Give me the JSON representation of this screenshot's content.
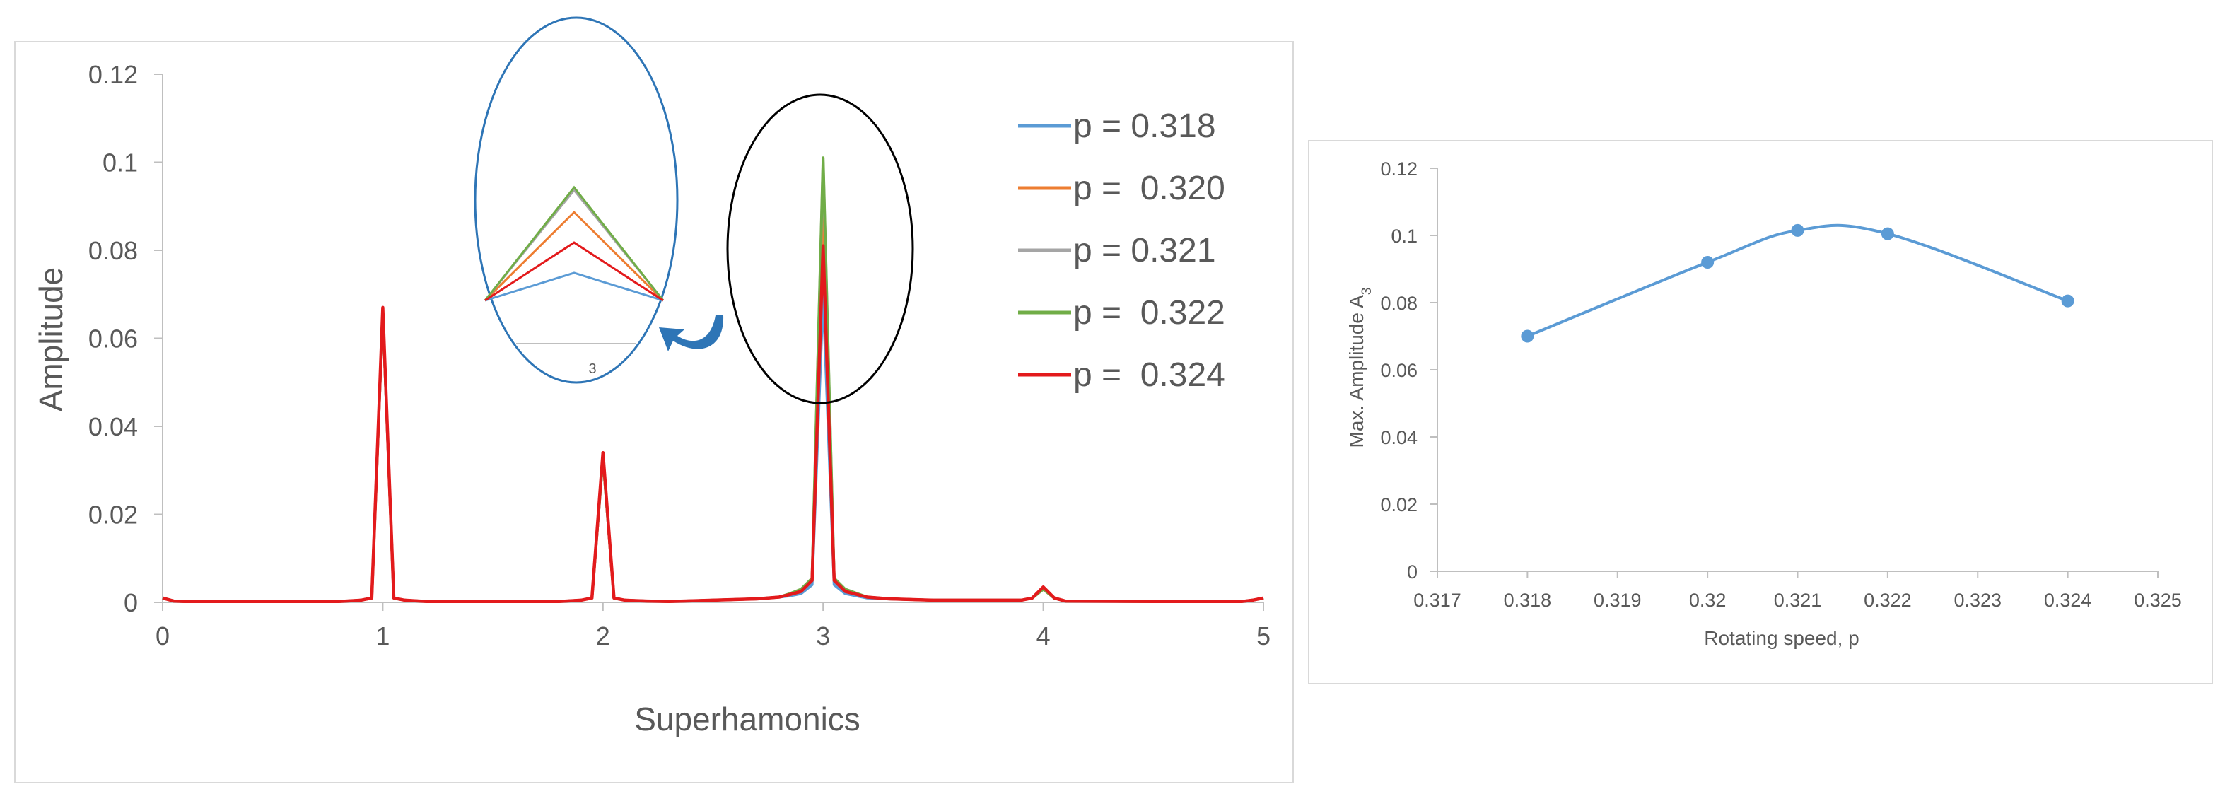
{
  "chart_data": [
    {
      "type": "line",
      "title": "",
      "xlabel": "Superhamonics",
      "ylabel": "Amplitude",
      "xlim": [
        0,
        5
      ],
      "ylim": [
        0,
        0.12
      ],
      "x_ticks": [
        "0",
        "1",
        "2",
        "3",
        "4",
        "5"
      ],
      "y_ticks": [
        "0",
        "0.02",
        "0.04",
        "0.06",
        "0.08",
        "0.1",
        "0.12"
      ],
      "grid": false,
      "legend_position": "right",
      "x": [
        0,
        0.05,
        0.1,
        0.2,
        0.5,
        0.8,
        0.9,
        0.95,
        1.0,
        1.05,
        1.1,
        1.2,
        1.5,
        1.8,
        1.9,
        1.95,
        2.0,
        2.05,
        2.1,
        2.2,
        2.3,
        2.5,
        2.7,
        2.8,
        2.85,
        2.9,
        2.95,
        3.0,
        3.05,
        3.1,
        3.2,
        3.3,
        3.5,
        3.8,
        3.9,
        3.95,
        4.0,
        4.05,
        4.1,
        4.5,
        4.9,
        4.95,
        5.0
      ],
      "series": [
        {
          "name": "p = 0.318",
          "color": "#5b9bd5",
          "values": [
            0.001,
            0.0003,
            0.0002,
            0.0002,
            0.0002,
            0.0002,
            0.0005,
            0.001,
            0.066,
            0.001,
            0.0005,
            0.0002,
            0.0002,
            0.0002,
            0.0005,
            0.001,
            0.033,
            0.001,
            0.0005,
            0.0003,
            0.0002,
            0.0005,
            0.0008,
            0.0012,
            0.0015,
            0.002,
            0.004,
            0.07,
            0.004,
            0.002,
            0.001,
            0.0008,
            0.0005,
            0.0005,
            0.0005,
            0.001,
            0.003,
            0.001,
            0.0003,
            0.0002,
            0.0002,
            0.0005,
            0.001
          ]
        },
        {
          "name": "p =  0.320",
          "color": "#ed7d31",
          "values": [
            0.001,
            0.0003,
            0.0002,
            0.0002,
            0.0002,
            0.0002,
            0.0005,
            0.001,
            0.066,
            0.001,
            0.0005,
            0.0002,
            0.0002,
            0.0002,
            0.0005,
            0.001,
            0.033,
            0.001,
            0.0005,
            0.0003,
            0.0002,
            0.0005,
            0.0008,
            0.0012,
            0.0018,
            0.0025,
            0.005,
            0.092,
            0.005,
            0.0025,
            0.0012,
            0.0008,
            0.0005,
            0.0005,
            0.0005,
            0.001,
            0.003,
            0.001,
            0.0003,
            0.0002,
            0.0002,
            0.0005,
            0.001
          ]
        },
        {
          "name": "p = 0.321",
          "color": "#a5a5a5",
          "values": [
            0.001,
            0.0003,
            0.0002,
            0.0002,
            0.0002,
            0.0002,
            0.0005,
            0.001,
            0.066,
            0.001,
            0.0005,
            0.0002,
            0.0002,
            0.0002,
            0.0005,
            0.001,
            0.033,
            0.001,
            0.0005,
            0.0003,
            0.0002,
            0.0005,
            0.0008,
            0.0012,
            0.0018,
            0.0025,
            0.005,
            0.1,
            0.005,
            0.0025,
            0.0012,
            0.0008,
            0.0005,
            0.0005,
            0.0005,
            0.001,
            0.003,
            0.001,
            0.0003,
            0.0002,
            0.0002,
            0.0005,
            0.001
          ]
        },
        {
          "name": "p =  0.322",
          "color": "#70ad47",
          "values": [
            0.001,
            0.0003,
            0.0002,
            0.0002,
            0.0002,
            0.0002,
            0.0005,
            0.001,
            0.066,
            0.001,
            0.0005,
            0.0002,
            0.0002,
            0.0002,
            0.0005,
            0.001,
            0.033,
            0.001,
            0.0005,
            0.0003,
            0.0002,
            0.0005,
            0.0008,
            0.0012,
            0.002,
            0.003,
            0.0055,
            0.101,
            0.0055,
            0.003,
            0.0012,
            0.0008,
            0.0005,
            0.0005,
            0.0005,
            0.001,
            0.003,
            0.001,
            0.0003,
            0.0002,
            0.0002,
            0.0005,
            0.001
          ]
        },
        {
          "name": "p =  0.324",
          "color": "#e31a1c",
          "values": [
            0.001,
            0.0003,
            0.0002,
            0.0002,
            0.0002,
            0.0002,
            0.0005,
            0.001,
            0.067,
            0.001,
            0.0005,
            0.0002,
            0.0002,
            0.0002,
            0.0005,
            0.001,
            0.034,
            0.001,
            0.0005,
            0.0003,
            0.0002,
            0.0005,
            0.0008,
            0.0012,
            0.0018,
            0.0025,
            0.005,
            0.081,
            0.005,
            0.0025,
            0.0012,
            0.0008,
            0.0005,
            0.0005,
            0.0005,
            0.001,
            0.0035,
            0.001,
            0.0003,
            0.0002,
            0.0002,
            0.0005,
            0.001
          ]
        }
      ],
      "annotations": {
        "inset_tick_label": "3",
        "inset_peaks": [
          0.07,
          0.092,
          0.101,
          0.081
        ]
      }
    },
    {
      "type": "line",
      "title": "",
      "xlabel": "Rotating speed, p",
      "ylabel": "Max. Amplitude A",
      "ylabel_subscript": "3",
      "xlim": [
        0.317,
        0.325
      ],
      "ylim": [
        0,
        0.12
      ],
      "x_ticks": [
        "0.317",
        "0.318",
        "0.319",
        "0.32",
        "0.321",
        "0.322",
        "0.323",
        "0.324",
        "0.325"
      ],
      "y_ticks": [
        "0",
        "0.02",
        "0.04",
        "0.06",
        "0.08",
        "0.1",
        "0.12"
      ],
      "grid": false,
      "color": "#5b9bd5",
      "x": [
        0.318,
        0.32,
        0.321,
        0.322,
        0.324
      ],
      "values": [
        0.07,
        0.092,
        0.1015,
        0.1005,
        0.0805
      ]
    }
  ]
}
